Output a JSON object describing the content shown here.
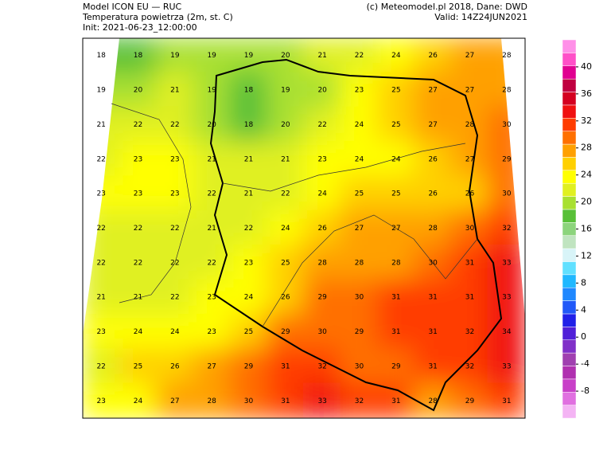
{
  "header": {
    "model": "Model ICON EU — RUC",
    "variable": "Temperatura powietrza (2m, st. C)",
    "init": "Init: 2021-06-23_12:00:00",
    "credit": "(c) Meteomodel.pl 2018, Dane: DWD",
    "valid": "Valid: 14Z24JUN2021"
  },
  "colorbar": {
    "lim": [
      -12,
      44
    ],
    "ticks": [
      -8,
      -4,
      0,
      4,
      8,
      12,
      16,
      20,
      24,
      28,
      32,
      36,
      40
    ],
    "colors": [
      "#f4b4f4",
      "#e070e0",
      "#c840c8",
      "#b030b0",
      "#a040b0",
      "#8030c8",
      "#5020d8",
      "#2020e8",
      "#2058f8",
      "#2088ff",
      "#20b8ff",
      "#60e0ff",
      "#d8f4f8",
      "#c0e4c0",
      "#8cd47c",
      "#58c038",
      "#a8e030",
      "#e0f020",
      "#ffff00",
      "#ffd000",
      "#ffa000",
      "#ff7000",
      "#ff3c00",
      "#f01010",
      "#d40020",
      "#c00040",
      "#e00090",
      "#ff50c8",
      "#ff90e8"
    ]
  },
  "map": {
    "grid": [
      [
        18,
        18,
        19,
        19,
        19,
        20,
        21,
        22,
        24,
        26,
        27,
        28
      ],
      [
        19,
        20,
        21,
        19,
        18,
        19,
        20,
        23,
        25,
        27,
        27,
        28
      ],
      [
        21,
        22,
        22,
        20,
        18,
        20,
        22,
        24,
        25,
        27,
        28,
        30
      ],
      [
        22,
        23,
        23,
        21,
        21,
        21,
        23,
        24,
        24,
        26,
        27,
        29
      ],
      [
        23,
        23,
        23,
        22,
        21,
        22,
        24,
        25,
        25,
        26,
        26,
        30
      ],
      [
        22,
        22,
        22,
        21,
        22,
        24,
        26,
        27,
        27,
        28,
        30,
        32
      ],
      [
        22,
        22,
        22,
        22,
        23,
        25,
        28,
        28,
        28,
        30,
        31,
        33
      ],
      [
        21,
        21,
        22,
        23,
        24,
        26,
        29,
        30,
        31,
        31,
        31,
        33
      ],
      [
        23,
        24,
        24,
        23,
        25,
        29,
        30,
        29,
        31,
        31,
        32,
        34
      ],
      [
        22,
        25,
        26,
        27,
        29,
        31,
        32,
        30,
        29,
        31,
        32,
        33
      ],
      [
        23,
        24,
        27,
        28,
        30,
        31,
        33,
        32,
        31,
        28,
        29,
        31
      ]
    ]
  }
}
